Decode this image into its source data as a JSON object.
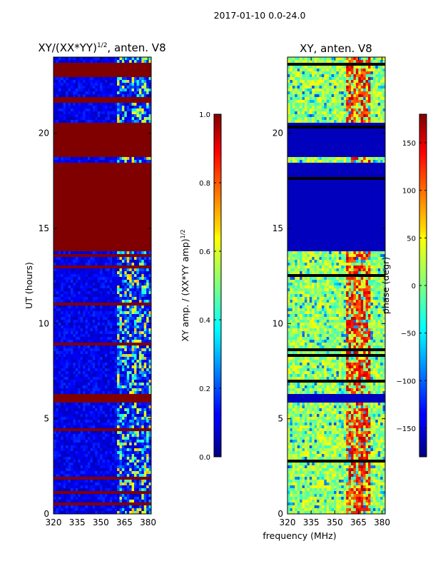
{
  "chart_data": [
    {
      "type": "heatmap",
      "suptitle": "2017-01-10 0.0-24.0",
      "title_main": "XY/(XX*YY)",
      "title_exp": "1/2",
      "title_suffix": ", anten. V8",
      "ylabel": "UT (hours)",
      "xlabel": "",
      "x_range": [
        320,
        382
      ],
      "y_range": [
        0,
        24
      ],
      "xticks": [
        320,
        335,
        350,
        365,
        380
      ],
      "yticks": [
        0,
        5,
        10,
        15,
        20
      ],
      "xtick_labels": [
        "320",
        "335",
        "350",
        "365",
        "380"
      ],
      "ytick_labels": [
        "0",
        "5",
        "10",
        "15",
        "20"
      ],
      "colorbar": {
        "label_main": "XY amp. / (XX*YY amp)",
        "label_exp": "1/2",
        "range": [
          0.0,
          1.0
        ],
        "ticks": [
          0.0,
          0.2,
          0.4,
          0.6,
          0.8,
          1.0
        ],
        "tick_labels": [
          "0.0",
          "0.2",
          "0.4",
          "0.6",
          "0.8",
          "1.0"
        ],
        "colormap": "jet"
      },
      "saturated_bands_hours": [
        [
          5.8,
          6.3
        ],
        [
          13.8,
          18.5
        ],
        [
          18.8,
          20.5
        ],
        [
          21.6,
          21.9
        ],
        [
          22.9,
          23.7
        ]
      ],
      "notes": "Background mostly low amplitude (~0.1); high-amplitude (~1.0) bands where data flagged; speckled values between 360-380 MHz."
    },
    {
      "type": "heatmap",
      "title": "XY, anten. V8",
      "ylabel": "",
      "xlabel": "frequency (MHz)",
      "x_range": [
        320,
        382
      ],
      "y_range": [
        0,
        24
      ],
      "xticks": [
        320,
        335,
        350,
        365,
        380
      ],
      "yticks": [
        0,
        5,
        10,
        15,
        20
      ],
      "xtick_labels": [
        "320",
        "335",
        "350",
        "365",
        "380"
      ],
      "ytick_labels": [
        "0",
        "5",
        "10",
        "15",
        "20"
      ],
      "colorbar": {
        "label": "phase (degr)",
        "range": [
          -180,
          180
        ],
        "ticks": [
          -150,
          -100,
          -50,
          0,
          50,
          100,
          150
        ],
        "tick_labels": [
          "−150",
          "−100",
          "−50",
          "0",
          "50",
          "100",
          "150"
        ],
        "colormap": "jet"
      },
      "dark_bands_hours": [
        [
          5.8,
          6.3
        ],
        [
          13.8,
          18.5
        ],
        [
          18.8,
          20.5
        ]
      ],
      "notes": "Phase mostly near 0 (green/cyan) with red/orange structures around 358-372 MHz; deep-blue flagged bands."
    }
  ]
}
